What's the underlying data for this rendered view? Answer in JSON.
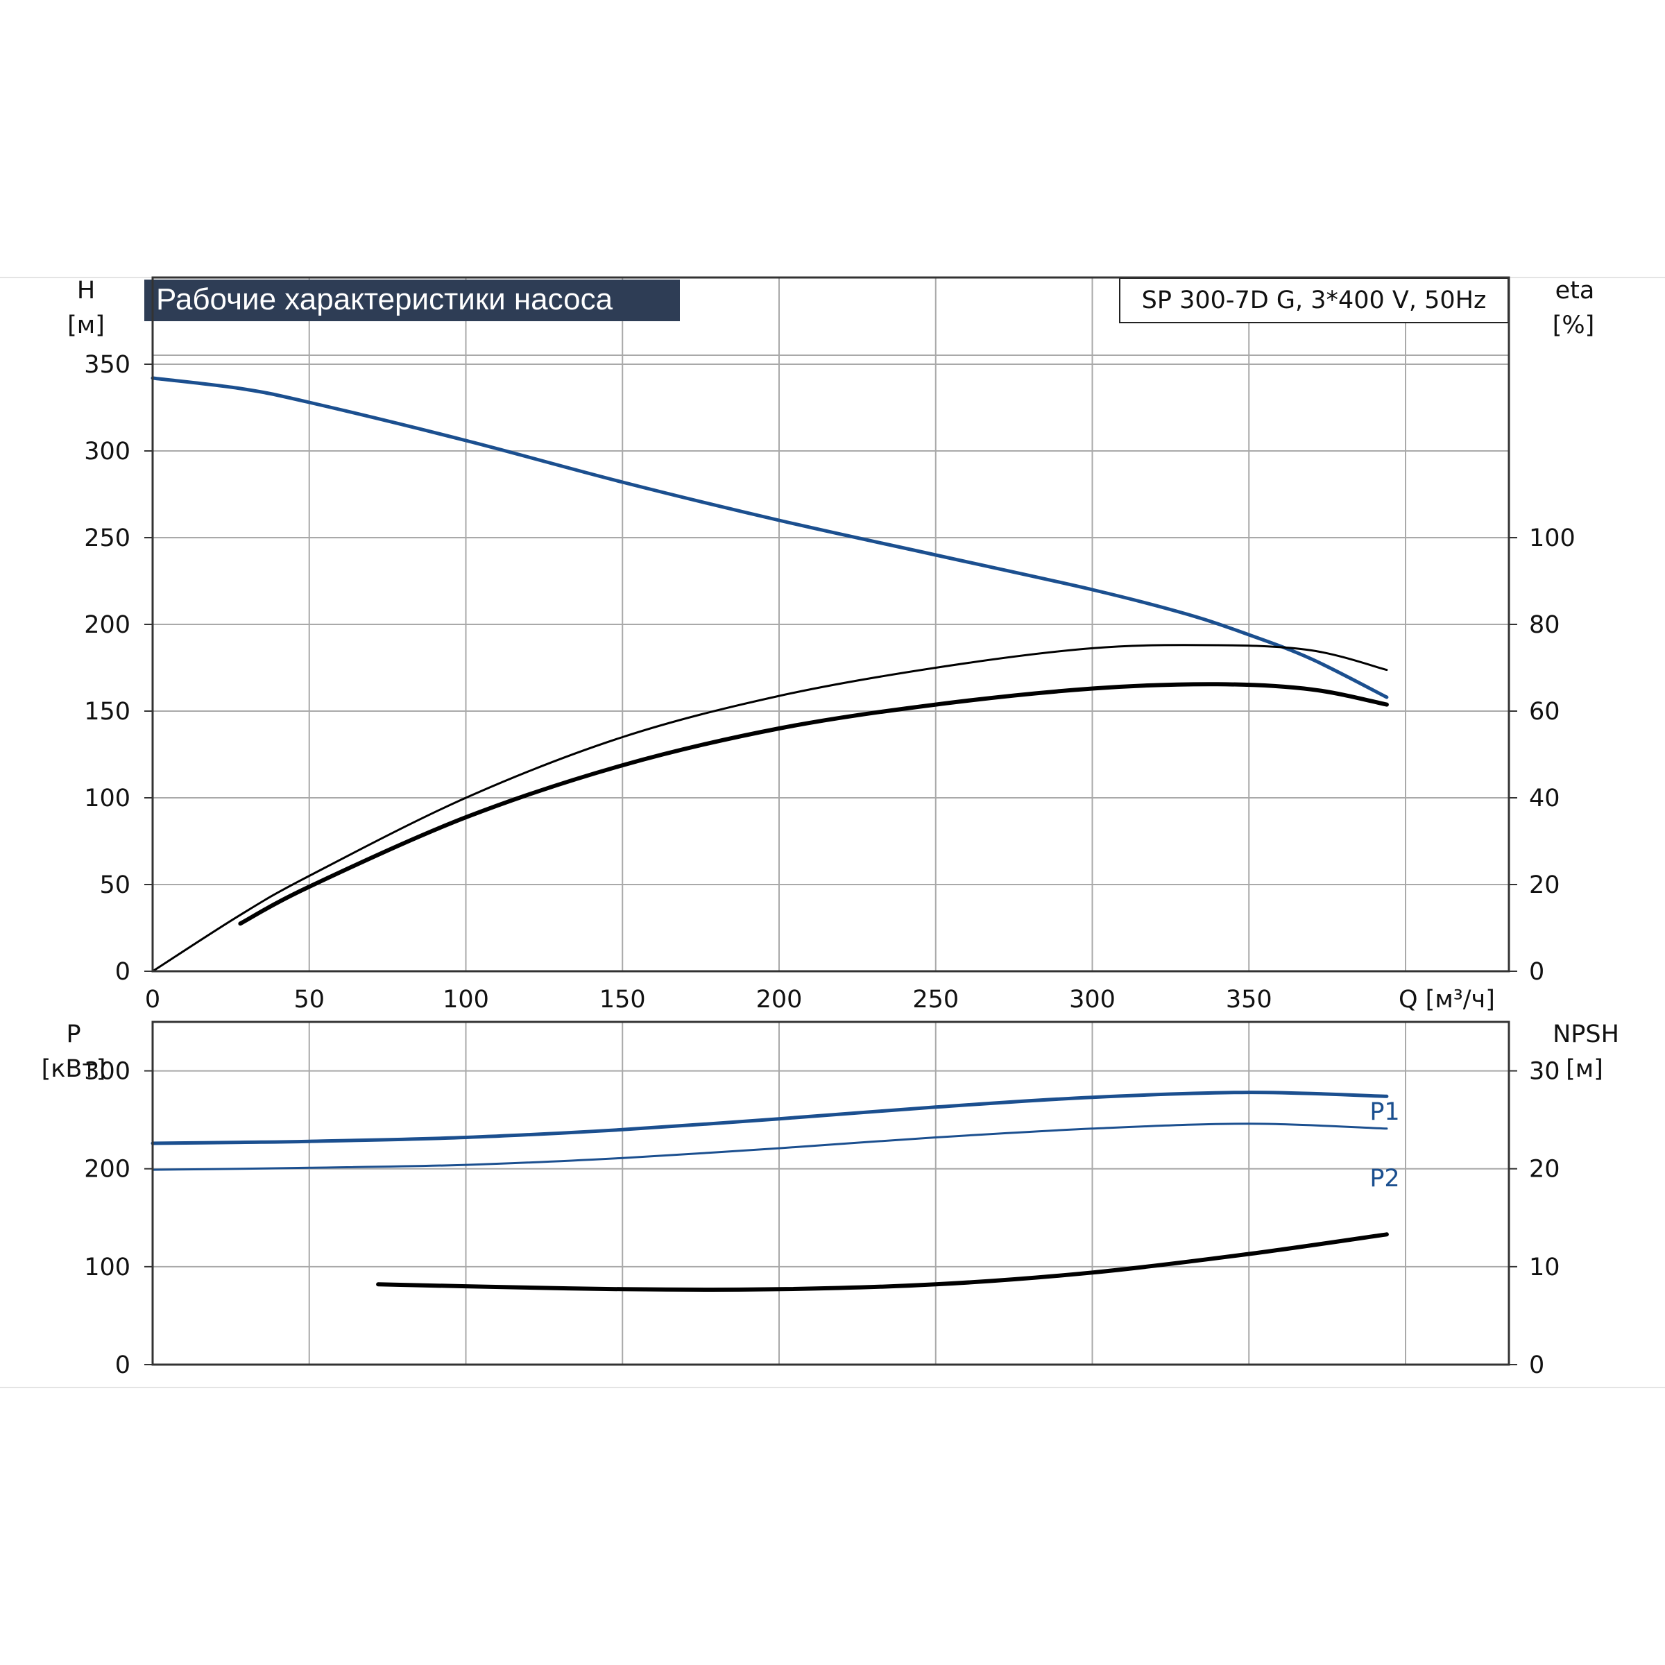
{
  "header": {
    "title": "Рабочие характеристики насоса",
    "model": "SP 300-7D G, 3*400 V, 50Hz"
  },
  "colors": {
    "blue": "#1b4f8f",
    "black": "#000000",
    "title_bg": "#2e3d55",
    "title_fg": "#ffffff"
  },
  "chart_data": [
    {
      "id": "head_efficiency",
      "type": "line",
      "xlabel": "Q [м³/ч]",
      "x_ticks": [
        "0",
        "50",
        "100",
        "150",
        "200",
        "250",
        "300",
        "350"
      ],
      "xlim": [
        0,
        433
      ],
      "ylabel_left": [
        "H",
        "[м]"
      ],
      "ylim_left": [
        0,
        400
      ],
      "y_ticks_left": [
        "0",
        "50",
        "100",
        "150",
        "200",
        "250",
        "300",
        "350"
      ],
      "ylabel_right": [
        "eta",
        "[%]"
      ],
      "ylim_right": [
        0,
        160
      ],
      "y_ticks_right": [
        "0",
        "20",
        "40",
        "60",
        "80",
        "100"
      ],
      "grid": true,
      "series": [
        {
          "axis": "left",
          "color": "blue",
          "width": 5,
          "x": [
            0,
            28,
            50,
            100,
            150,
            200,
            250,
            300,
            330,
            350,
            370,
            394
          ],
          "y": [
            342,
            336,
            328,
            306,
            282,
            260,
            240,
            220,
            206,
            194,
            180,
            158
          ]
        },
        {
          "axis": "right",
          "color": "black",
          "width": 3,
          "x": [
            0,
            28,
            50,
            100,
            150,
            200,
            250,
            300,
            340,
            370,
            394
          ],
          "y": [
            0,
            13,
            22,
            40,
            54,
            63.5,
            70,
            74.5,
            75.2,
            74,
            69.5
          ]
        },
        {
          "axis": "right",
          "color": "black",
          "width": 6,
          "x": [
            28,
            50,
            100,
            150,
            200,
            250,
            300,
            340,
            370,
            394
          ],
          "y": [
            11,
            19.5,
            35.5,
            47.5,
            56,
            61.5,
            65.2,
            66.2,
            65,
            61.5
          ]
        }
      ]
    },
    {
      "id": "power_npsh",
      "type": "line",
      "x_ticks": [
        "0",
        "50",
        "100",
        "150",
        "200",
        "250",
        "300",
        "350"
      ],
      "xlim": [
        0,
        433
      ],
      "ylabel_left": [
        "P",
        "[кВт]"
      ],
      "ylim_left": [
        0,
        350
      ],
      "y_ticks_left": [
        "0",
        "100",
        "200",
        "300"
      ],
      "ylabel_right": [
        "NPSH",
        "[м]"
      ],
      "ylim_right": [
        0,
        35
      ],
      "y_ticks_right": [
        "0",
        "10",
        "20",
        "30"
      ],
      "grid": true,
      "series": [
        {
          "name": "P1",
          "axis": "left",
          "color": "blue",
          "width": 5,
          "x": [
            0,
            28,
            50,
            100,
            150,
            200,
            250,
            300,
            350,
            394
          ],
          "y": [
            226,
            227,
            228,
            232,
            240,
            251,
            263,
            273,
            278,
            274
          ]
        },
        {
          "name": "P2",
          "axis": "left",
          "color": "blue",
          "width": 3,
          "x": [
            0,
            28,
            50,
            100,
            150,
            200,
            250,
            300,
            350,
            394
          ],
          "y": [
            199,
            200,
            201,
            204,
            211,
            221,
            232,
            241,
            246,
            241
          ]
        },
        {
          "axis": "right",
          "color": "black",
          "width": 6,
          "x": [
            72,
            100,
            150,
            200,
            250,
            300,
            350,
            394
          ],
          "y": [
            8.2,
            8.0,
            7.7,
            7.7,
            8.2,
            9.4,
            11.3,
            13.3
          ]
        }
      ]
    }
  ]
}
